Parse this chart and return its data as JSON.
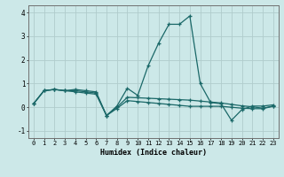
{
  "title": "",
  "xlabel": "Humidex (Indice chaleur)",
  "bg_color": "#cce8e8",
  "grid_color": "#b0cccc",
  "line_color": "#1a6868",
  "xlim": [
    -0.5,
    23.5
  ],
  "ylim": [
    -1.3,
    4.3
  ],
  "xticks": [
    0,
    1,
    2,
    3,
    4,
    5,
    6,
    7,
    8,
    9,
    10,
    11,
    12,
    13,
    14,
    15,
    16,
    17,
    18,
    19,
    20,
    21,
    22,
    23
  ],
  "yticks": [
    -1,
    0,
    1,
    2,
    3,
    4
  ],
  "line1_x": [
    0,
    1,
    2,
    3,
    4,
    5,
    6,
    7,
    8,
    9,
    10,
    11,
    12,
    13,
    14,
    15,
    16,
    17,
    18,
    19,
    20,
    21,
    22,
    23
  ],
  "line1_y": [
    0.15,
    0.7,
    0.75,
    0.7,
    0.75,
    0.7,
    0.65,
    -0.35,
    0.05,
    0.8,
    0.5,
    1.75,
    2.7,
    3.5,
    3.5,
    3.85,
    1.0,
    0.2,
    0.15,
    -0.55,
    -0.1,
    0.05,
    0.05,
    0.1
  ],
  "line2_x": [
    0,
    1,
    2,
    3,
    4,
    5,
    6,
    7,
    8,
    9,
    10,
    11,
    12,
    13,
    14,
    15,
    16,
    17,
    18,
    19,
    20,
    21,
    22,
    23
  ],
  "line2_y": [
    0.15,
    0.7,
    0.75,
    0.7,
    0.7,
    0.65,
    0.6,
    -0.35,
    0.0,
    0.42,
    0.4,
    0.38,
    0.36,
    0.34,
    0.32,
    0.3,
    0.26,
    0.22,
    0.18,
    0.12,
    0.06,
    0.02,
    -0.04,
    0.05
  ],
  "line3_x": [
    0,
    1,
    2,
    3,
    4,
    5,
    6,
    7,
    8,
    9,
    10,
    11,
    12,
    13,
    14,
    15,
    16,
    17,
    18,
    19,
    20,
    21,
    22,
    23
  ],
  "line3_y": [
    0.15,
    0.7,
    0.75,
    0.7,
    0.65,
    0.6,
    0.55,
    -0.35,
    -0.05,
    0.28,
    0.24,
    0.2,
    0.16,
    0.12,
    0.08,
    0.04,
    0.04,
    0.04,
    0.04,
    0.0,
    -0.04,
    -0.06,
    -0.06,
    0.04
  ]
}
